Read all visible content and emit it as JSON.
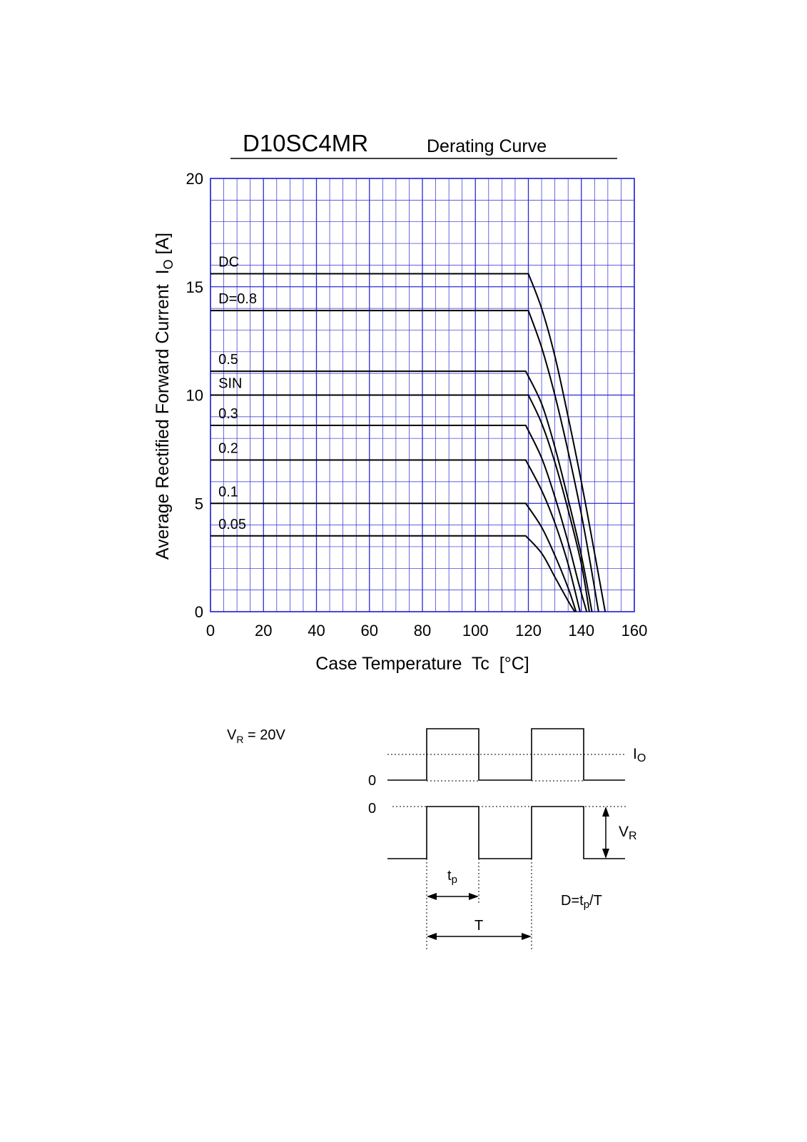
{
  "header": {
    "part_number": "D10SC4MR",
    "subtitle": "Derating Curve"
  },
  "colors": {
    "grid": "#2a2ad0",
    "curve": "#000000",
    "background": "#ffffff"
  },
  "chart_data": {
    "type": "line",
    "xlabel": "Case Temperature  Tc  [°C]",
    "ylabel": {
      "main": "Average Rectified Forward Current  I",
      "sub": "O",
      "unit": " [A]"
    },
    "xlim": [
      0,
      160
    ],
    "ylim": [
      0,
      20
    ],
    "x_ticks": [
      "0",
      "20",
      "40",
      "60",
      "80",
      "100",
      "120",
      "140",
      "160"
    ],
    "y_ticks": [
      "0",
      "5",
      "10",
      "15",
      "20"
    ],
    "grid": true,
    "series": [
      {
        "name": "DC",
        "points": [
          [
            0,
            15.6
          ],
          [
            120,
            15.6
          ],
          [
            125,
            14.0
          ],
          [
            130,
            11.8
          ],
          [
            135,
            9.0
          ],
          [
            140,
            6.0
          ],
          [
            145,
            2.7
          ],
          [
            149,
            0
          ]
        ]
      },
      {
        "name": "D=0.8",
        "points": [
          [
            0,
            13.9
          ],
          [
            120,
            13.9
          ],
          [
            125,
            12.2
          ],
          [
            130,
            10.0
          ],
          [
            135,
            7.4
          ],
          [
            140,
            4.5
          ],
          [
            144,
            1.8
          ],
          [
            146.5,
            0
          ]
        ]
      },
      {
        "name": "0.5",
        "points": [
          [
            0,
            11.1
          ],
          [
            119,
            11.1
          ],
          [
            125,
            9.6
          ],
          [
            130,
            7.6
          ],
          [
            135,
            5.2
          ],
          [
            140,
            2.6
          ],
          [
            144,
            0
          ]
        ]
      },
      {
        "name": "SIN",
        "points": [
          [
            0,
            10.0
          ],
          [
            120,
            10.0
          ],
          [
            125,
            8.7
          ],
          [
            130,
            6.9
          ],
          [
            135,
            4.7
          ],
          [
            140,
            2.2
          ],
          [
            143,
            0
          ]
        ]
      },
      {
        "name": "0.3",
        "points": [
          [
            0,
            8.6
          ],
          [
            119,
            8.6
          ],
          [
            125,
            7.1
          ],
          [
            130,
            5.3
          ],
          [
            135,
            3.2
          ],
          [
            139,
            1.3
          ],
          [
            142,
            0
          ]
        ]
      },
      {
        "name": "0.2",
        "points": [
          [
            0,
            7.0
          ],
          [
            119,
            7.0
          ],
          [
            125,
            5.6
          ],
          [
            130,
            4.1
          ],
          [
            135,
            2.2
          ],
          [
            139.5,
            0
          ]
        ]
      },
      {
        "name": "0.1",
        "points": [
          [
            0,
            5.0
          ],
          [
            119,
            5.0
          ],
          [
            125,
            3.9
          ],
          [
            130,
            2.6
          ],
          [
            135,
            1.1
          ],
          [
            138,
            0
          ]
        ]
      },
      {
        "name": "0.05",
        "points": [
          [
            0,
            3.5
          ],
          [
            119,
            3.5
          ],
          [
            125,
            2.7
          ],
          [
            130,
            1.6
          ],
          [
            135,
            0.5
          ],
          [
            137.5,
            0
          ]
        ]
      }
    ]
  },
  "waveform": {
    "vr_condition": {
      "prefix": "V",
      "sub": "R",
      "suffix": " = 20V"
    },
    "zero_label_current": "0",
    "zero_label_voltage": "0",
    "io_label": {
      "main": "I",
      "sub": "O"
    },
    "vr_label": {
      "main": "V",
      "sub": "R"
    },
    "tp_label": {
      "main": "t",
      "sub": "p"
    },
    "period_label": "T",
    "duty_formula": {
      "prefix": "D=t",
      "sub": "p",
      "suffix": "/T"
    }
  }
}
